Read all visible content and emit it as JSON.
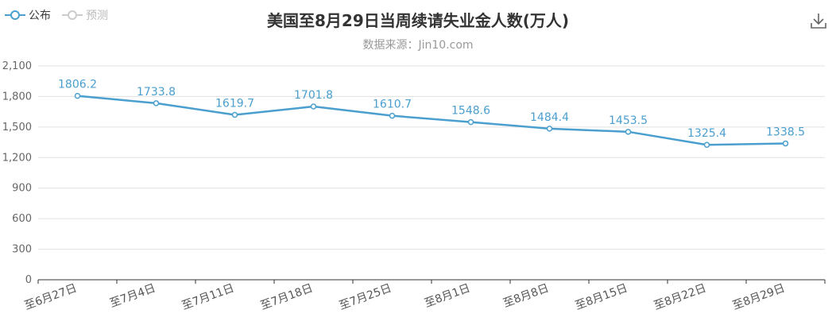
{
  "legend": {
    "items": [
      {
        "label": "公布"
      },
      {
        "label": "预测"
      }
    ]
  },
  "colors": {
    "series": "#4a9fcf",
    "legend_inactive": "#cccccc",
    "grid": "#e0e0e0",
    "axis": "#333333"
  },
  "chart_data": {
    "type": "line",
    "title": "美国至8月29日当周续请失业金人数(万人)",
    "subtitle": "数据来源：Jin10.com",
    "categories": [
      "至6月27日",
      "至7月4日",
      "至7月11日",
      "至7月18日",
      "至7月25日",
      "至8月1日",
      "至8月8日",
      "至8月15日",
      "至8月22日",
      "至8月29日"
    ],
    "series": [
      {
        "name": "公布",
        "values": [
          1806.2,
          1733.8,
          1619.7,
          1701.8,
          1610.7,
          1548.6,
          1484.4,
          1453.5,
          1325.4,
          1338.5
        ]
      }
    ],
    "ylim": [
      0,
      2100
    ],
    "yticks": [
      "0",
      "300",
      "600",
      "900",
      "1,200",
      "1,500",
      "1,800",
      "2,100"
    ],
    "grid": true,
    "legend_position": "top-left"
  }
}
